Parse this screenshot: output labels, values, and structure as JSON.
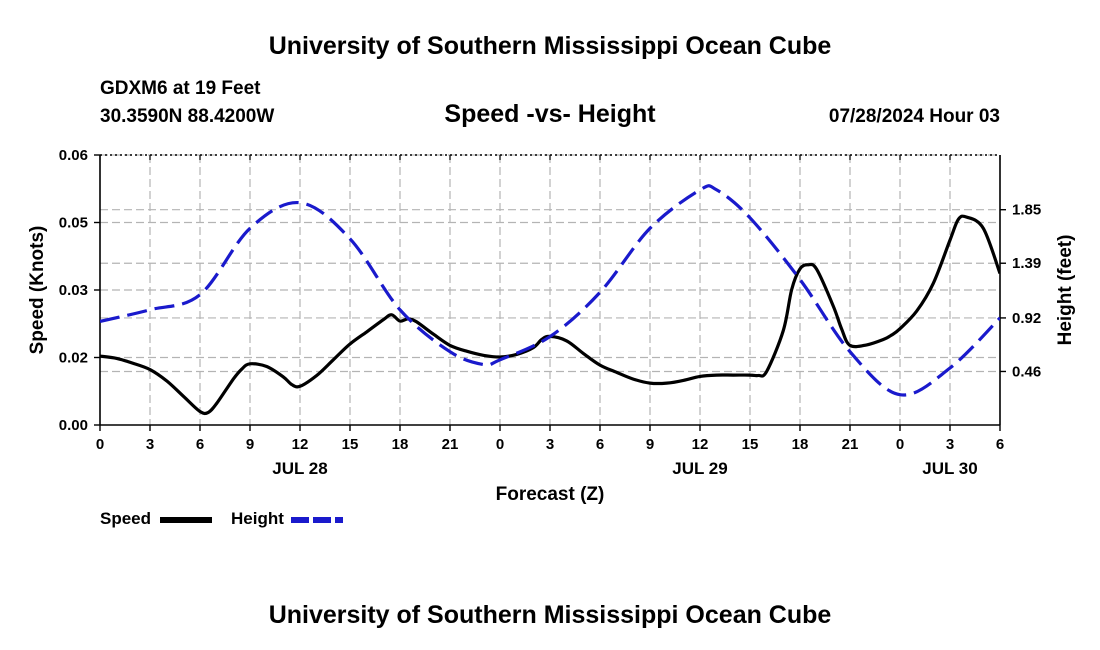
{
  "header": {
    "title": "University of Southern Mississippi Ocean Cube",
    "station_line1": "GDXM6 at 19 Feet",
    "station_line2": "30.3590N  88.4200W",
    "chart_title": "Speed -vs- Height",
    "timestamp": "07/28/2024 Hour 03"
  },
  "footer": {
    "title": "University of Southern Mississippi Ocean Cube"
  },
  "legend": {
    "speed_label": "Speed",
    "height_label": "Height"
  },
  "colors": {
    "speed": "#000000",
    "height": "#1a1acc",
    "grid": "#b4b4b4"
  },
  "chart_data": {
    "type": "line",
    "title": "Speed -vs- Height",
    "xlabel": "Forecast (Z)",
    "ylabel": "Speed (Knots)",
    "y2label": "Height (feet)",
    "x_ticks": [
      "0",
      "3",
      "6",
      "9",
      "12",
      "15",
      "18",
      "21",
      "0",
      "3",
      "6",
      "9",
      "12",
      "15",
      "18",
      "21",
      "0",
      "3",
      "6"
    ],
    "x_ticks_hours": [
      0,
      3,
      6,
      9,
      12,
      15,
      18,
      21,
      24,
      27,
      30,
      33,
      36,
      39,
      42,
      45,
      48,
      51,
      54
    ],
    "xlim": [
      0,
      54
    ],
    "date_labels": [
      {
        "label": "JUL 28",
        "hour": 12
      },
      {
        "label": "JUL 29",
        "hour": 36
      },
      {
        "label": "JUL 30",
        "hour": 51
      }
    ],
    "y_ticks": [
      "0.00",
      "0.02",
      "0.03",
      "0.05",
      "0.06"
    ],
    "y_tick_values": [
      0,
      0.015,
      0.03,
      0.045,
      0.06
    ],
    "ylim": [
      0,
      0.06
    ],
    "y2_ticks": [
      "0.46",
      "0.92",
      "1.39",
      "1.85"
    ],
    "y2_tick_values": [
      0.46,
      0.92,
      1.39,
      1.85
    ],
    "y2lim": [
      0,
      2.32
    ],
    "series": [
      {
        "name": "Speed",
        "axis": "left",
        "style": "solid",
        "x": [
          0,
          1,
          2,
          3,
          4,
          5,
          6,
          6.5,
          7,
          8,
          8.5,
          9,
          10,
          11,
          11.5,
          12,
          13,
          14,
          15,
          16,
          17,
          17.5,
          18,
          18.5,
          19,
          20,
          21,
          22,
          23,
          24,
          25,
          26,
          26.5,
          27,
          28,
          29,
          30,
          31,
          32,
          33,
          34,
          35,
          36,
          37,
          38,
          39,
          39.5,
          40,
          41,
          41.5,
          42,
          42.5,
          43,
          44,
          44.5,
          45,
          46,
          47,
          47.5,
          48,
          49,
          50,
          51,
          51.5,
          52,
          53,
          54
        ],
        "y": [
          0.0153,
          0.0148,
          0.0137,
          0.0123,
          0.0098,
          0.0064,
          0.003,
          0.0028,
          0.0048,
          0.0102,
          0.0124,
          0.0136,
          0.013,
          0.0107,
          0.009,
          0.0086,
          0.011,
          0.0145,
          0.018,
          0.0207,
          0.0234,
          0.0245,
          0.0231,
          0.0236,
          0.0229,
          0.0202,
          0.0177,
          0.0164,
          0.0155,
          0.0151,
          0.0157,
          0.0172,
          0.019,
          0.0197,
          0.0187,
          0.0159,
          0.0133,
          0.0117,
          0.0102,
          0.0093,
          0.0093,
          0.0099,
          0.0108,
          0.0111,
          0.0111,
          0.0111,
          0.011,
          0.0119,
          0.021,
          0.0301,
          0.0347,
          0.0356,
          0.0346,
          0.0264,
          0.0213,
          0.0177,
          0.0178,
          0.019,
          0.02,
          0.0214,
          0.0253,
          0.0315,
          0.0411,
          0.0457,
          0.0462,
          0.0437,
          0.0337
        ]
      },
      {
        "name": "Height",
        "axis": "right",
        "style": "dashed",
        "x": [
          0,
          3,
          6,
          9,
          12,
          15,
          18,
          21,
          23,
          24,
          27,
          30,
          33,
          36,
          37,
          39,
          42,
          45,
          48,
          51,
          54
        ],
        "y": [
          0.89,
          0.99,
          1.12,
          1.69,
          1.91,
          1.6,
          0.99,
          0.63,
          0.52,
          0.56,
          0.76,
          1.14,
          1.69,
          2.02,
          2.02,
          1.78,
          1.25,
          0.63,
          0.26,
          0.49,
          0.92
        ]
      }
    ]
  }
}
